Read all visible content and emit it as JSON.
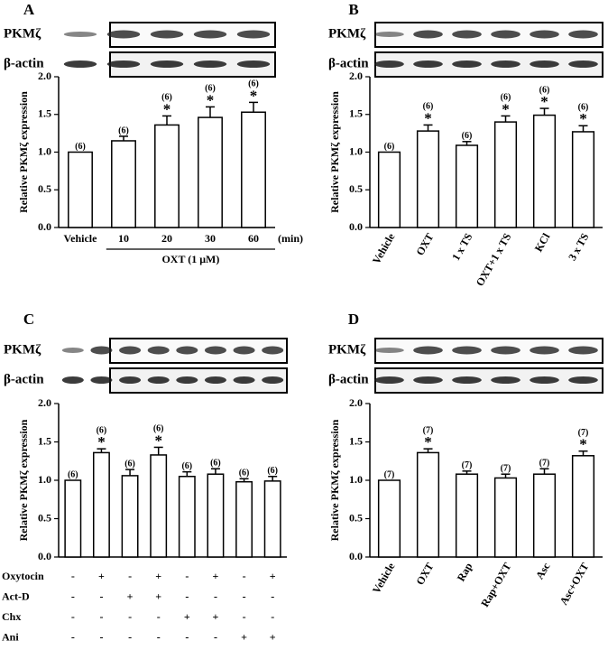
{
  "chart_data": [
    {
      "type": "bar",
      "panel": "A",
      "blot_labels": [
        "PKMζ",
        "β-actin"
      ],
      "ylabel": "Relative PKMζ expression",
      "categories": [
        "Vehicle",
        "10",
        "20",
        "30",
        "60"
      ],
      "x_unit": "(min)",
      "group_label": "OXT (1 μM)",
      "values": [
        1.0,
        1.15,
        1.36,
        1.46,
        1.53
      ],
      "errors": [
        0,
        0.06,
        0.12,
        0.14,
        0.13
      ],
      "n_labels": [
        "(6)",
        "(6)",
        "(6)",
        "(6)",
        "(6)"
      ],
      "significance": [
        null,
        null,
        "*",
        "*",
        "*"
      ],
      "ylim": [
        0,
        2
      ],
      "yticks": [
        {
          "value": 0,
          "label": "0.0"
        },
        {
          "value": 0.5,
          "label": "0.5"
        },
        {
          "value": 1,
          "label": "1.0"
        },
        {
          "value": 1.5,
          "label": "1.5"
        },
        {
          "value": 2,
          "label": "2.0"
        }
      ]
    },
    {
      "type": "bar",
      "panel": "B",
      "blot_labels": [
        "PKMζ",
        "β-actin"
      ],
      "ylabel": "Relative PKMζ expression",
      "categories": [
        "Vehicle",
        "OXT",
        "1 x TS",
        "OXT+1 x TS",
        "KCl",
        "3 x TS"
      ],
      "values": [
        1.0,
        1.28,
        1.09,
        1.4,
        1.49,
        1.27
      ],
      "errors": [
        0,
        0.08,
        0.05,
        0.08,
        0.09,
        0.08
      ],
      "n_labels": [
        "(6)",
        "(6)",
        "(6)",
        "(6)",
        "(6)",
        "(6)"
      ],
      "significance": [
        null,
        "*",
        null,
        "*",
        "*",
        "*"
      ],
      "ylim": [
        0,
        2
      ],
      "yticks": [
        {
          "value": 0,
          "label": "0.0"
        },
        {
          "value": 0.5,
          "label": "0.5"
        },
        {
          "value": 1,
          "label": "1.0"
        },
        {
          "value": 1.5,
          "label": "1.5"
        },
        {
          "value": 2,
          "label": "2.0"
        }
      ]
    },
    {
      "type": "bar",
      "panel": "C",
      "blot_labels": [
        "PKMζ",
        "β-actin"
      ],
      "ylabel": "Relative PKMζ expression",
      "categories": [
        null,
        null,
        null,
        null,
        null,
        null,
        null,
        null
      ],
      "values": [
        1.0,
        1.36,
        1.06,
        1.33,
        1.05,
        1.08,
        0.98,
        0.99
      ],
      "errors": [
        0,
        0.05,
        0.08,
        0.1,
        0.06,
        0.07,
        0.04,
        0.06
      ],
      "n_labels": [
        "(6)",
        "(6)",
        "(6)",
        "(6)",
        "(6)",
        "(6)",
        "(6)",
        "(6)"
      ],
      "significance": [
        null,
        "*",
        null,
        "*",
        null,
        null,
        null,
        null
      ],
      "treatments": [
        {
          "name": "Oxytocin",
          "signs": [
            "-",
            "+",
            "-",
            "+",
            "-",
            "+",
            "-",
            "+"
          ]
        },
        {
          "name": "Act-D",
          "signs": [
            "-",
            "-",
            "+",
            "+",
            "-",
            "-",
            "-",
            "-"
          ]
        },
        {
          "name": "Chx",
          "signs": [
            "-",
            "-",
            "-",
            "-",
            "+",
            "+",
            "-",
            "-"
          ]
        },
        {
          "name": "Ani",
          "signs": [
            "-",
            "-",
            "-",
            "-",
            "-",
            "-",
            "+",
            "+"
          ]
        }
      ],
      "ylim": [
        0,
        2
      ],
      "yticks": [
        {
          "value": 0,
          "label": "0.0"
        },
        {
          "value": 0.5,
          "label": "0.5"
        },
        {
          "value": 1,
          "label": "1.0"
        },
        {
          "value": 1.5,
          "label": "1.5"
        },
        {
          "value": 2,
          "label": "2.0"
        }
      ]
    },
    {
      "type": "bar",
      "panel": "D",
      "blot_labels": [
        "PKMζ",
        "β-actin"
      ],
      "ylabel": "Relative PKMζ expression",
      "categories": [
        "Vehicle",
        "OXT",
        "Rap",
        "Rap+OXT",
        "Asc",
        "Asc+OXT"
      ],
      "values": [
        1.0,
        1.36,
        1.08,
        1.03,
        1.08,
        1.32
      ],
      "errors": [
        0,
        0.05,
        0.04,
        0.05,
        0.07,
        0.06
      ],
      "n_labels": [
        "(7)",
        "(7)",
        "(7)",
        "(7)",
        "(7)",
        "(7)"
      ],
      "significance": [
        null,
        "*",
        null,
        null,
        null,
        "*"
      ],
      "ylim": [
        0,
        2
      ],
      "yticks": [
        {
          "value": 0,
          "label": "0.0"
        },
        {
          "value": 0.5,
          "label": "0.5"
        },
        {
          "value": 1,
          "label": "1.0"
        },
        {
          "value": 1.5,
          "label": "1.5"
        },
        {
          "value": 2,
          "label": "2.0"
        }
      ]
    }
  ]
}
